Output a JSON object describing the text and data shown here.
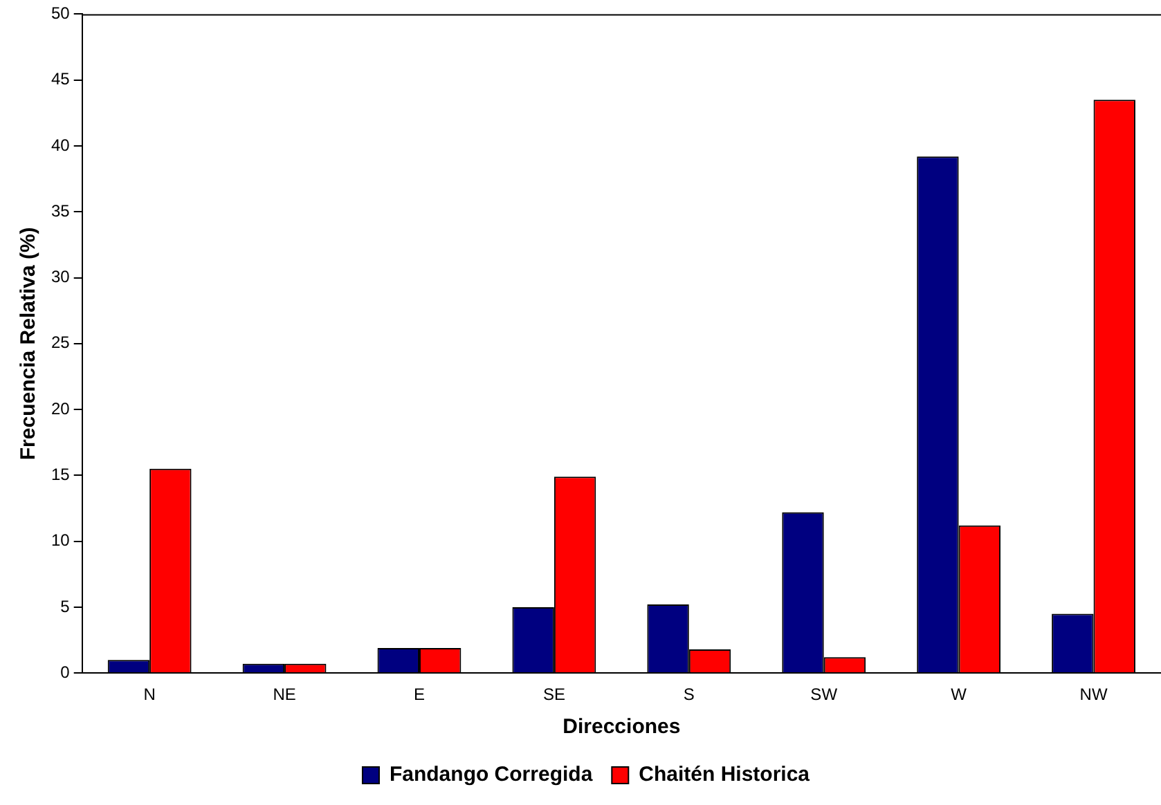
{
  "chart_data": {
    "type": "bar",
    "xlabel": "Direcciones",
    "ylabel": "Frecuencia Relativa (%)",
    "categories": [
      "N",
      "NE",
      "E",
      "SE",
      "S",
      "SW",
      "W",
      "NW"
    ],
    "series": [
      {
        "name": "Fandango Corregida",
        "color": "#000080",
        "values": [
          1.0,
          0.7,
          1.9,
          5.0,
          5.2,
          12.2,
          39.2,
          4.5
        ]
      },
      {
        "name": "Chaitén Historica",
        "color": "#ff0000",
        "values": [
          15.5,
          0.7,
          1.9,
          14.9,
          1.8,
          1.2,
          11.2,
          43.5
        ]
      }
    ],
    "ylim": [
      0,
      50
    ],
    "yticks": [
      0,
      5,
      10,
      15,
      20,
      25,
      30,
      35,
      40,
      45,
      50
    ],
    "grid": false,
    "legend": "bottom"
  }
}
